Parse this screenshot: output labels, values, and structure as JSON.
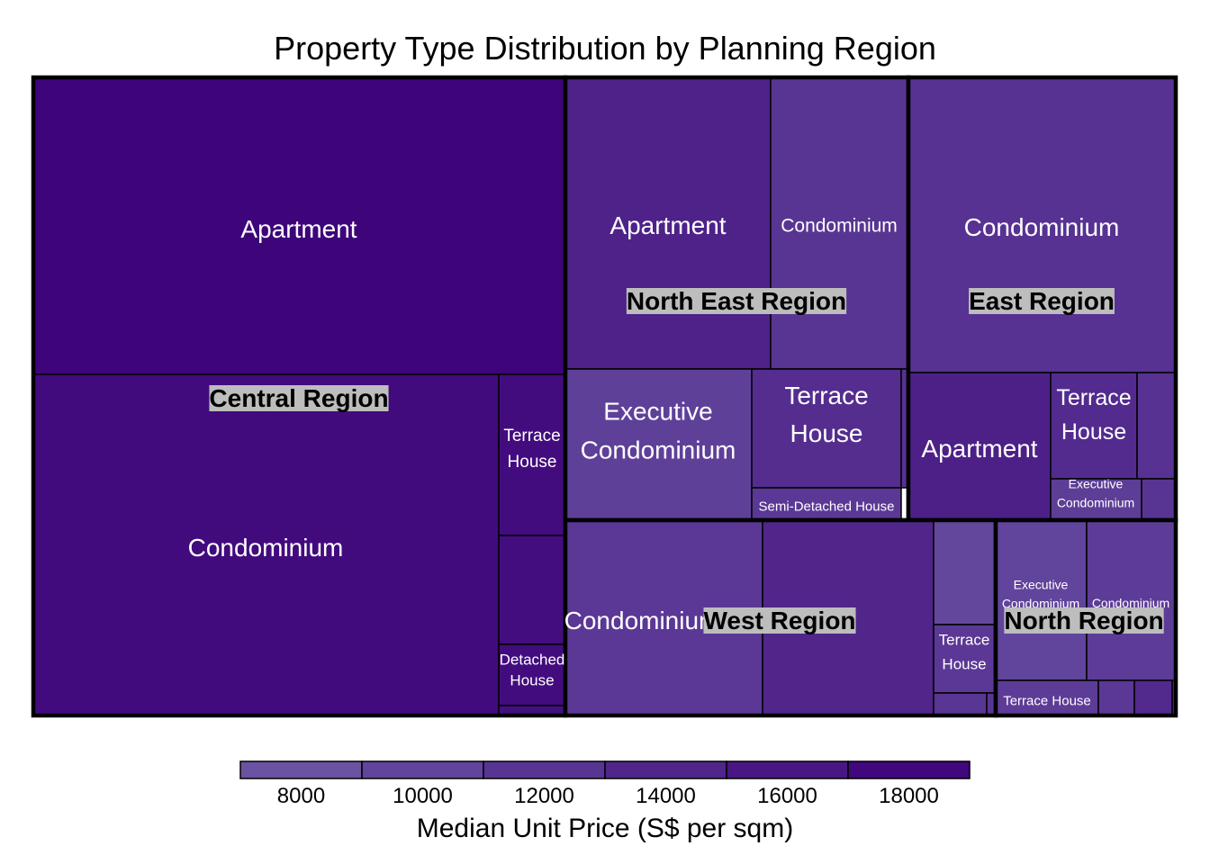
{
  "chart_data": {
    "type": "treemap",
    "title": "Property Type Distribution by Planning Region",
    "regions": [
      {
        "name": "Central Region",
        "tiles": [
          {
            "label": "Apartment",
            "value": 18500
          },
          {
            "label": "Condominium",
            "value": 17600
          },
          {
            "label": "Terrace House",
            "value": 17400
          },
          {
            "label": "",
            "value": 17300
          },
          {
            "label": "Detached House",
            "value": 17400
          },
          {
            "label": "",
            "value": 17000
          }
        ]
      },
      {
        "name": "North East Region",
        "tiles": [
          {
            "label": "Apartment",
            "value": 14500
          },
          {
            "label": "Condominium",
            "value": 12000
          },
          {
            "label": "Executive Condominium",
            "value": 10500
          },
          {
            "label": "Terrace House",
            "value": 13000
          },
          {
            "label": "Semi-Detached House",
            "value": 11500
          },
          {
            "label": "",
            "value": 12500
          }
        ]
      },
      {
        "name": "East Region",
        "tiles": [
          {
            "label": "Condominium",
            "value": 12300
          },
          {
            "label": "Apartment",
            "value": 14800
          },
          {
            "label": "Terrace House",
            "value": 13300
          },
          {
            "label": "",
            "value": 12300
          },
          {
            "label": "Executive Condominium",
            "value": 10800
          },
          {
            "label": "",
            "value": 12000
          }
        ]
      },
      {
        "name": "West Region",
        "tiles": [
          {
            "label": "Condominium",
            "value": 11500
          },
          {
            "label": "",
            "value": 14000
          },
          {
            "label": "",
            "value": 9500
          },
          {
            "label": "Terrace House",
            "value": 11500
          },
          {
            "label": "",
            "value": 11800
          },
          {
            "label": "",
            "value": 12000
          }
        ]
      },
      {
        "name": "North Region",
        "tiles": [
          {
            "label": "Executive Condominium",
            "value": 10000
          },
          {
            "label": "Condominium",
            "value": 11000
          },
          {
            "label": "Terrace House",
            "value": 11000
          },
          {
            "label": "",
            "value": 11500
          },
          {
            "label": "",
            "value": 13500
          },
          {
            "label": "",
            "value": 12500
          }
        ]
      }
    ],
    "color_scale": {
      "title": "Median Unit Price (S$ per sqm)",
      "ticks": [
        8000,
        10000,
        12000,
        14000,
        16000,
        18000
      ],
      "range": [
        7000,
        19000
      ],
      "low_color": "#6d5aa6",
      "high_color": "#3c0078"
    }
  }
}
